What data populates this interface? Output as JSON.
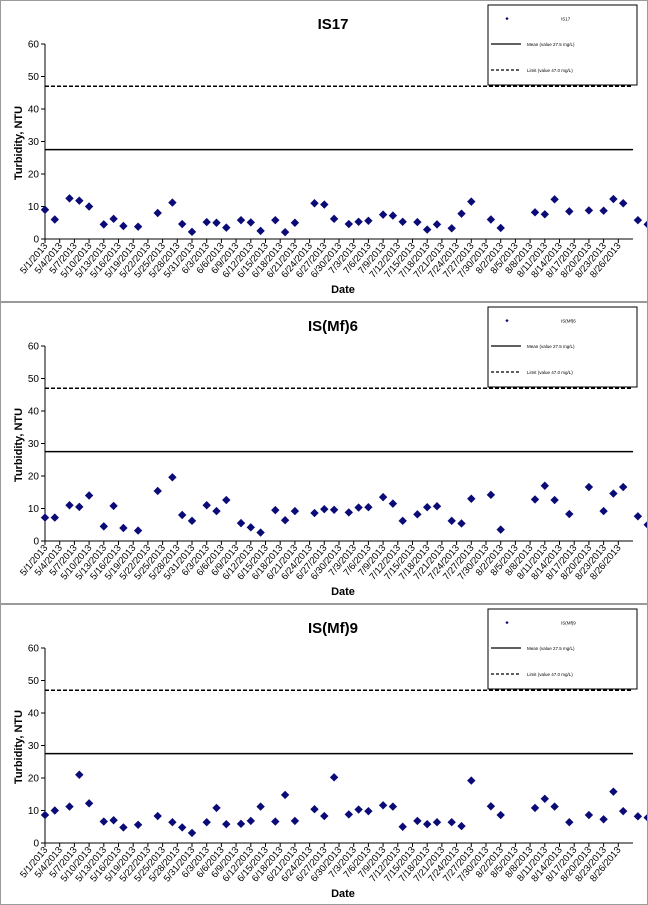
{
  "dates": [
    "5/1/2013",
    "5/4/2013",
    "5/7/2013",
    "5/10/2013",
    "5/13/2013",
    "5/16/2013",
    "5/19/2013",
    "5/22/2013",
    "5/25/2013",
    "5/28/2013",
    "5/31/2013",
    "6/3/2013",
    "6/6/2013",
    "6/9/2013",
    "6/12/2013",
    "6/15/2013",
    "6/18/2013",
    "6/21/2013",
    "6/24/2013",
    "6/27/2013",
    "6/30/2013",
    "7/3/2013",
    "7/6/2013",
    "7/9/2013",
    "7/12/2013",
    "7/15/2013",
    "7/18/2013",
    "7/21/2013",
    "7/24/2013",
    "7/27/2013",
    "7/30/2013",
    "8/2/2013",
    "8/5/2013",
    "8/8/2013",
    "8/11/2013",
    "8/14/2013",
    "8/17/2013",
    "8/20/2013",
    "8/23/2013",
    "8/26/2013"
  ],
  "chart_data": [
    {
      "type": "scatter",
      "title": "IS17",
      "xlabel": "Date",
      "ylabel": "Turbidity, NTU",
      "ylim": [
        0,
        60
      ],
      "yticks": [
        0,
        10,
        20,
        30,
        40,
        50,
        60
      ],
      "xlim": [
        "5/1/2013",
        "8/29/2013"
      ],
      "legend": {
        "position": "top-right",
        "entries": [
          "IS17",
          "Mean (value 27.5 mg/L)",
          "Limit (value 47.0 mg/L)"
        ]
      },
      "hlines": [
        {
          "y": 27.5,
          "style": "solid"
        },
        {
          "y": 47,
          "style": "dashed"
        }
      ],
      "points": [
        {
          "x": "5/1/2013",
          "y": 9
        },
        {
          "x": "5/3/2013",
          "y": 6
        },
        {
          "x": "5/6/2013",
          "y": 12.5
        },
        {
          "x": "5/8/2013",
          "y": 11.8
        },
        {
          "x": "5/10/2013",
          "y": 10
        },
        {
          "x": "5/13/2013",
          "y": 4.5
        },
        {
          "x": "5/15/2013",
          "y": 6.2
        },
        {
          "x": "5/17/2013",
          "y": 4
        },
        {
          "x": "5/20/2013",
          "y": 3.8
        },
        {
          "x": "5/24/2013",
          "y": 8
        },
        {
          "x": "5/27/2013",
          "y": 11.2
        },
        {
          "x": "5/29/2013",
          "y": 4.6
        },
        {
          "x": "5/31/2013",
          "y": 2.2
        },
        {
          "x": "6/3/2013",
          "y": 5.2
        },
        {
          "x": "6/5/2013",
          "y": 5
        },
        {
          "x": "6/7/2013",
          "y": 3.5
        },
        {
          "x": "6/10/2013",
          "y": 5.8
        },
        {
          "x": "6/12/2013",
          "y": 5.1
        },
        {
          "x": "6/14/2013",
          "y": 2.5
        },
        {
          "x": "6/17/2013",
          "y": 5.8
        },
        {
          "x": "6/19/2013",
          "y": 2.1
        },
        {
          "x": "6/21/2013",
          "y": 5
        },
        {
          "x": "6/25/2013",
          "y": 11
        },
        {
          "x": "6/27/2013",
          "y": 10.6
        },
        {
          "x": "6/29/2013",
          "y": 6.2
        },
        {
          "x": "7/2/2013",
          "y": 4.6
        },
        {
          "x": "7/4/2013",
          "y": 5.3
        },
        {
          "x": "7/6/2013",
          "y": 5.6
        },
        {
          "x": "7/9/2013",
          "y": 7.5
        },
        {
          "x": "7/11/2013",
          "y": 7.2
        },
        {
          "x": "7/13/2013",
          "y": 5.3
        },
        {
          "x": "7/16/2013",
          "y": 5.2
        },
        {
          "x": "7/18/2013",
          "y": 2.9
        },
        {
          "x": "7/20/2013",
          "y": 4.5
        },
        {
          "x": "7/23/2013",
          "y": 3.3
        },
        {
          "x": "7/25/2013",
          "y": 7.8
        },
        {
          "x": "7/27/2013",
          "y": 11.5
        },
        {
          "x": "7/31/2013",
          "y": 6
        },
        {
          "x": "8/2/2013",
          "y": 3.4
        },
        {
          "x": "8/9/2013",
          "y": 8.2
        },
        {
          "x": "8/11/2013",
          "y": 7.6
        },
        {
          "x": "8/13/2013",
          "y": 12.2
        },
        {
          "x": "8/16/2013",
          "y": 8.5
        },
        {
          "x": "8/20/2013",
          "y": 8.8
        },
        {
          "x": "8/23/2013",
          "y": 8.7
        },
        {
          "x": "8/25/2013",
          "y": 12.3
        },
        {
          "x": "8/27/2013",
          "y": 11
        },
        {
          "x": "8/30/2013",
          "y": 5.8
        },
        {
          "x": "9/1/2013",
          "y": 4.5
        }
      ]
    },
    {
      "type": "scatter",
      "title": "IS(Mf)6",
      "xlabel": "Date",
      "ylabel": "Turbidity, NTU",
      "ylim": [
        0,
        60
      ],
      "yticks": [
        0,
        10,
        20,
        30,
        40,
        50,
        60
      ],
      "xlim": [
        "5/1/2013",
        "8/29/2013"
      ],
      "legend": {
        "position": "top-right",
        "entries": [
          "IS(Mf)6",
          "Mean (value 27.5 mg/L)",
          "Limit (value 47.0 mg/L)"
        ]
      },
      "hlines": [
        {
          "y": 27.5,
          "style": "solid"
        },
        {
          "y": 47,
          "style": "dashed"
        }
      ],
      "points": [
        {
          "x": "5/1/2013",
          "y": 7.2
        },
        {
          "x": "5/3/2013",
          "y": 7.2
        },
        {
          "x": "5/6/2013",
          "y": 11
        },
        {
          "x": "5/8/2013",
          "y": 10.5
        },
        {
          "x": "5/10/2013",
          "y": 14
        },
        {
          "x": "5/13/2013",
          "y": 4.5
        },
        {
          "x": "5/15/2013",
          "y": 10.8
        },
        {
          "x": "5/17/2013",
          "y": 4
        },
        {
          "x": "5/20/2013",
          "y": 3.2
        },
        {
          "x": "5/24/2013",
          "y": 15.4
        },
        {
          "x": "5/27/2013",
          "y": 19.6
        },
        {
          "x": "5/29/2013",
          "y": 8
        },
        {
          "x": "5/31/2013",
          "y": 6.2
        },
        {
          "x": "6/3/2013",
          "y": 11
        },
        {
          "x": "6/5/2013",
          "y": 9.2
        },
        {
          "x": "6/7/2013",
          "y": 12.6
        },
        {
          "x": "6/10/2013",
          "y": 5.5
        },
        {
          "x": "6/12/2013",
          "y": 4.2
        },
        {
          "x": "6/14/2013",
          "y": 2.6
        },
        {
          "x": "6/17/2013",
          "y": 9.5
        },
        {
          "x": "6/19/2013",
          "y": 6.4
        },
        {
          "x": "6/21/2013",
          "y": 9.2
        },
        {
          "x": "6/25/2013",
          "y": 8.6
        },
        {
          "x": "6/27/2013",
          "y": 9.8
        },
        {
          "x": "6/29/2013",
          "y": 9.6
        },
        {
          "x": "7/2/2013",
          "y": 8.8
        },
        {
          "x": "7/4/2013",
          "y": 10.3
        },
        {
          "x": "7/6/2013",
          "y": 10.4
        },
        {
          "x": "7/9/2013",
          "y": 13.5
        },
        {
          "x": "7/11/2013",
          "y": 11.5
        },
        {
          "x": "7/13/2013",
          "y": 6.2
        },
        {
          "x": "7/16/2013",
          "y": 8.2
        },
        {
          "x": "7/18/2013",
          "y": 10.4
        },
        {
          "x": "7/20/2013",
          "y": 10.7
        },
        {
          "x": "7/23/2013",
          "y": 6.2
        },
        {
          "x": "7/25/2013",
          "y": 5.4
        },
        {
          "x": "7/27/2013",
          "y": 13
        },
        {
          "x": "7/31/2013",
          "y": 14.2
        },
        {
          "x": "8/2/2013",
          "y": 3.5
        },
        {
          "x": "8/9/2013",
          "y": 12.8
        },
        {
          "x": "8/11/2013",
          "y": 17
        },
        {
          "x": "8/13/2013",
          "y": 12.6
        },
        {
          "x": "8/16/2013",
          "y": 8.3
        },
        {
          "x": "8/20/2013",
          "y": 16.6
        },
        {
          "x": "8/23/2013",
          "y": 9.2
        },
        {
          "x": "8/25/2013",
          "y": 14.6
        },
        {
          "x": "8/27/2013",
          "y": 16.6
        },
        {
          "x": "8/30/2013",
          "y": 7.6
        },
        {
          "x": "9/1/2013",
          "y": 5
        }
      ]
    },
    {
      "type": "scatter",
      "title": "IS(Mf)9",
      "xlabel": "Date",
      "ylabel": "Turbidity, NTU",
      "ylim": [
        0,
        60
      ],
      "yticks": [
        0,
        10,
        20,
        30,
        40,
        50,
        60
      ],
      "xlim": [
        "5/1/2013",
        "8/29/2013"
      ],
      "legend": {
        "position": "top-right",
        "entries": [
          "IS(Mf)9",
          "Mean (value 27.5 mg/L)",
          "Limit (value 47.0 mg/L)"
        ]
      },
      "hlines": [
        {
          "y": 27.5,
          "style": "solid"
        },
        {
          "y": 47,
          "style": "dashed"
        }
      ],
      "points": [
        {
          "x": "5/1/2013",
          "y": 8.6
        },
        {
          "x": "5/3/2013",
          "y": 10
        },
        {
          "x": "5/6/2013",
          "y": 11.2
        },
        {
          "x": "5/8/2013",
          "y": 21
        },
        {
          "x": "5/10/2013",
          "y": 12.2
        },
        {
          "x": "5/13/2013",
          "y": 6.6
        },
        {
          "x": "5/15/2013",
          "y": 7
        },
        {
          "x": "5/17/2013",
          "y": 4.8
        },
        {
          "x": "5/20/2013",
          "y": 5.6
        },
        {
          "x": "5/24/2013",
          "y": 8.3
        },
        {
          "x": "5/27/2013",
          "y": 6.4
        },
        {
          "x": "5/29/2013",
          "y": 4.8
        },
        {
          "x": "5/31/2013",
          "y": 3.1
        },
        {
          "x": "6/3/2013",
          "y": 6.4
        },
        {
          "x": "6/5/2013",
          "y": 10.8
        },
        {
          "x": "6/7/2013",
          "y": 5.8
        },
        {
          "x": "6/10/2013",
          "y": 5.9
        },
        {
          "x": "6/12/2013",
          "y": 6.8
        },
        {
          "x": "6/14/2013",
          "y": 11.2
        },
        {
          "x": "6/17/2013",
          "y": 6.6
        },
        {
          "x": "6/19/2013",
          "y": 14.8
        },
        {
          "x": "6/21/2013",
          "y": 6.8
        },
        {
          "x": "6/25/2013",
          "y": 10.4
        },
        {
          "x": "6/27/2013",
          "y": 8.3
        },
        {
          "x": "6/29/2013",
          "y": 20.2
        },
        {
          "x": "7/2/2013",
          "y": 8.8
        },
        {
          "x": "7/4/2013",
          "y": 10.3
        },
        {
          "x": "7/6/2013",
          "y": 9.8
        },
        {
          "x": "7/9/2013",
          "y": 11.6
        },
        {
          "x": "7/11/2013",
          "y": 11.2
        },
        {
          "x": "7/13/2013",
          "y": 5
        },
        {
          "x": "7/16/2013",
          "y": 6.8
        },
        {
          "x": "7/18/2013",
          "y": 5.8
        },
        {
          "x": "7/20/2013",
          "y": 6.4
        },
        {
          "x": "7/23/2013",
          "y": 6.4
        },
        {
          "x": "7/25/2013",
          "y": 5.2
        },
        {
          "x": "7/27/2013",
          "y": 19.2
        },
        {
          "x": "7/31/2013",
          "y": 11.3
        },
        {
          "x": "8/2/2013",
          "y": 8.6
        },
        {
          "x": "8/9/2013",
          "y": 10.8
        },
        {
          "x": "8/11/2013",
          "y": 13.6
        },
        {
          "x": "8/13/2013",
          "y": 11.2
        },
        {
          "x": "8/16/2013",
          "y": 6.4
        },
        {
          "x": "8/20/2013",
          "y": 8.6
        },
        {
          "x": "8/23/2013",
          "y": 7.3
        },
        {
          "x": "8/25/2013",
          "y": 15.8
        },
        {
          "x": "8/27/2013",
          "y": 9.8
        },
        {
          "x": "8/30/2013",
          "y": 8.2
        },
        {
          "x": "9/1/2013",
          "y": 7.8
        }
      ]
    }
  ]
}
